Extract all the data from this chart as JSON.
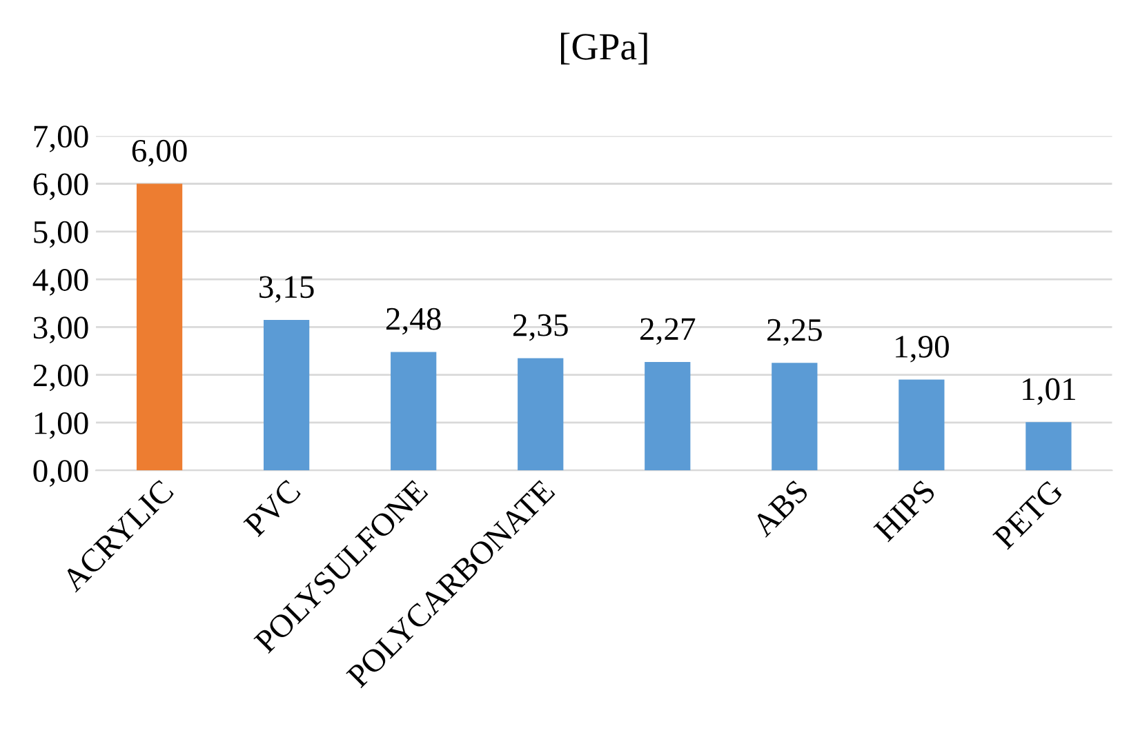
{
  "chart_data": {
    "type": "bar",
    "title": "[GPa]",
    "categories": [
      "ACRYLIC",
      "PVC",
      "POLYSULFONE",
      "POLYCARBONATE",
      null,
      "ABS",
      "HIPS",
      "PETG"
    ],
    "values": [
      6.0,
      3.15,
      2.48,
      2.35,
      2.27,
      2.25,
      1.9,
      1.01
    ],
    "colors": [
      "#ed7d31",
      "#5b9bd5",
      "#5b9bd5",
      "#5b9bd5",
      "#5b9bd5",
      "#5b9bd5",
      "#5b9bd5",
      "#5b9bd5"
    ],
    "value_labels": [
      "6,00",
      "3,15",
      "2,48",
      "2,35",
      "2,27",
      "2,25",
      "1,90",
      "1,01"
    ],
    "ylim": [
      0,
      7
    ],
    "yticks": [
      {
        "value": 0,
        "label": "0,00"
      },
      {
        "value": 1,
        "label": "1,00"
      },
      {
        "value": 2,
        "label": "2,00"
      },
      {
        "value": 3,
        "label": "3,00"
      },
      {
        "value": 4,
        "label": "4,00"
      },
      {
        "value": 5,
        "label": "5,00"
      },
      {
        "value": 6,
        "label": "6,00"
      },
      {
        "value": 7,
        "label": "7,00"
      }
    ],
    "grid": "y",
    "legend": false
  }
}
